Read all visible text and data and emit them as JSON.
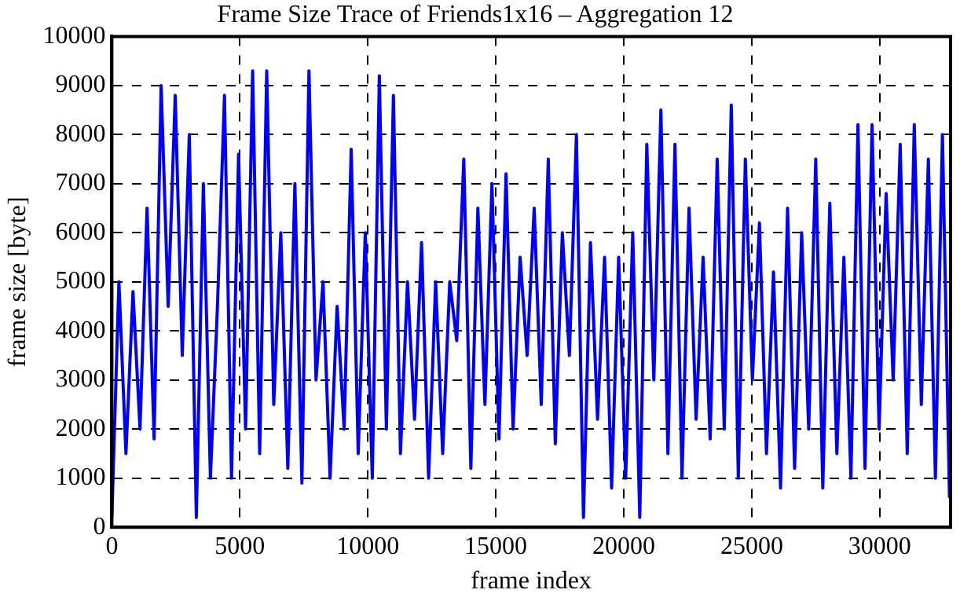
{
  "chart_data": {
    "type": "line",
    "title": "Frame Size Trace of Friends1x16 – Aggregation 12",
    "xlabel": "frame index",
    "ylabel": "frame size [byte]",
    "x": [
      0,
      275,
      550,
      825,
      1100,
      1375,
      1650,
      1925,
      2200,
      2475,
      2750,
      3025,
      3300,
      3575,
      3850,
      4125,
      4400,
      4675,
      4950,
      5225,
      5500,
      5775,
      6050,
      6325,
      6600,
      6875,
      7150,
      7425,
      7700,
      7975,
      8250,
      8525,
      8800,
      9075,
      9350,
      9625,
      9900,
      10175,
      10450,
      10725,
      11000,
      11275,
      11550,
      11825,
      12100,
      12375,
      12650,
      12925,
      13200,
      13475,
      13750,
      14025,
      14300,
      14575,
      14850,
      15125,
      15400,
      15675,
      15950,
      16225,
      16500,
      16775,
      17050,
      17325,
      17600,
      17875,
      18150,
      18425,
      18700,
      18975,
      19250,
      19525,
      19800,
      20075,
      20350,
      20625,
      20900,
      21175,
      21450,
      21725,
      22000,
      22275,
      22550,
      22825,
      23100,
      23375,
      23650,
      23925,
      24200,
      24475,
      24750,
      25025,
      25300,
      25575,
      25850,
      26125,
      26400,
      26675,
      26950,
      27225,
      27500,
      27775,
      28050,
      28325,
      28600,
      28875,
      29150,
      29425,
      29700,
      29975,
      30250,
      30525,
      30800,
      31075,
      31350,
      31625,
      31900,
      32175,
      32450,
      32725
    ],
    "series": [
      {
        "color": "#0000ff",
        "values": [
          200,
          5000,
          1500,
          4800,
          2000,
          6500,
          1800,
          9000,
          4500,
          8800,
          3500,
          8000,
          200,
          7000,
          1000,
          4500,
          8800,
          1000,
          7600,
          2000,
          9300,
          1500,
          9300,
          2500,
          6000,
          1200,
          7000,
          900,
          9300,
          3000,
          5000,
          1000,
          4500,
          2000,
          7700,
          1500,
          6000,
          1000,
          9200,
          2000,
          8800,
          1500,
          5000,
          2200,
          5800,
          1000,
          5000,
          1500,
          5000,
          3800,
          7500,
          1200,
          6500,
          2500,
          7000,
          1800,
          7200,
          2000,
          5500,
          3500,
          6500,
          2500,
          7500,
          1700,
          6000,
          3500,
          8000,
          200,
          5800,
          2200,
          5500,
          800,
          5500,
          1000,
          6000,
          200,
          7800,
          3000,
          8500,
          1500,
          7800,
          1000,
          6500,
          2200,
          5500,
          1800,
          7500,
          2000,
          8600,
          1000,
          7500,
          3000,
          6200,
          1500,
          5200,
          800,
          6500,
          1200,
          6000,
          2000,
          7500,
          800,
          6600,
          1500,
          5500,
          1000,
          8200,
          1200,
          8200,
          2000,
          6800,
          3000,
          7800,
          1500,
          8200,
          2500,
          7500,
          1000,
          8000,
          600
        ]
      }
    ],
    "xlim": [
      0,
      32768
    ],
    "xticks": [
      0,
      5000,
      10000,
      15000,
      20000,
      25000,
      30000
    ],
    "ylim": [
      0,
      10000
    ],
    "yticks": [
      0,
      1000,
      2000,
      3000,
      4000,
      5000,
      6000,
      7000,
      8000,
      9000,
      10000
    ],
    "grid": true,
    "legend": false,
    "marker": "none",
    "line_style": "solid"
  }
}
